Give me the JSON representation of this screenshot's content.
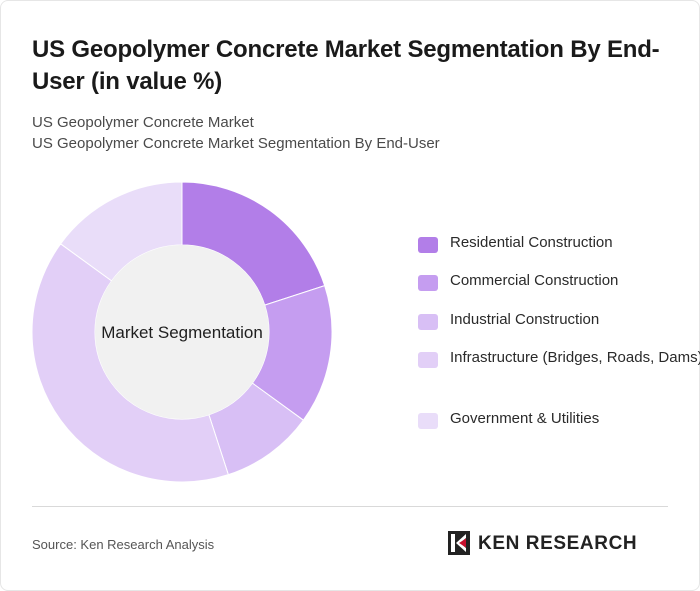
{
  "header": {
    "title": "US Geopolymer Concrete Market Segmentation By End-User (in value %)",
    "subtitle_line1": "US Geopolymer Concrete Market",
    "subtitle_line2": "US Geopolymer Concrete Market Segmentation By End-User"
  },
  "chart_data": {
    "type": "pie",
    "center_label": "Market Segmentation",
    "categories": [
      "Residential Construction",
      "Commercial Construction",
      "Industrial Construction",
      "Infrastructure (Bridges, Roads, Dams)",
      "Government & Utilities"
    ],
    "values": [
      20,
      15,
      10,
      40,
      15
    ],
    "colors": [
      "#b27ee8",
      "#c59df0",
      "#d8bff5",
      "#e2cff7",
      "#e9ddf9"
    ],
    "legend_position": "right"
  },
  "footer": {
    "source": "Source: Ken Research Analysis",
    "logo_text": "KEN RESEARCH"
  }
}
